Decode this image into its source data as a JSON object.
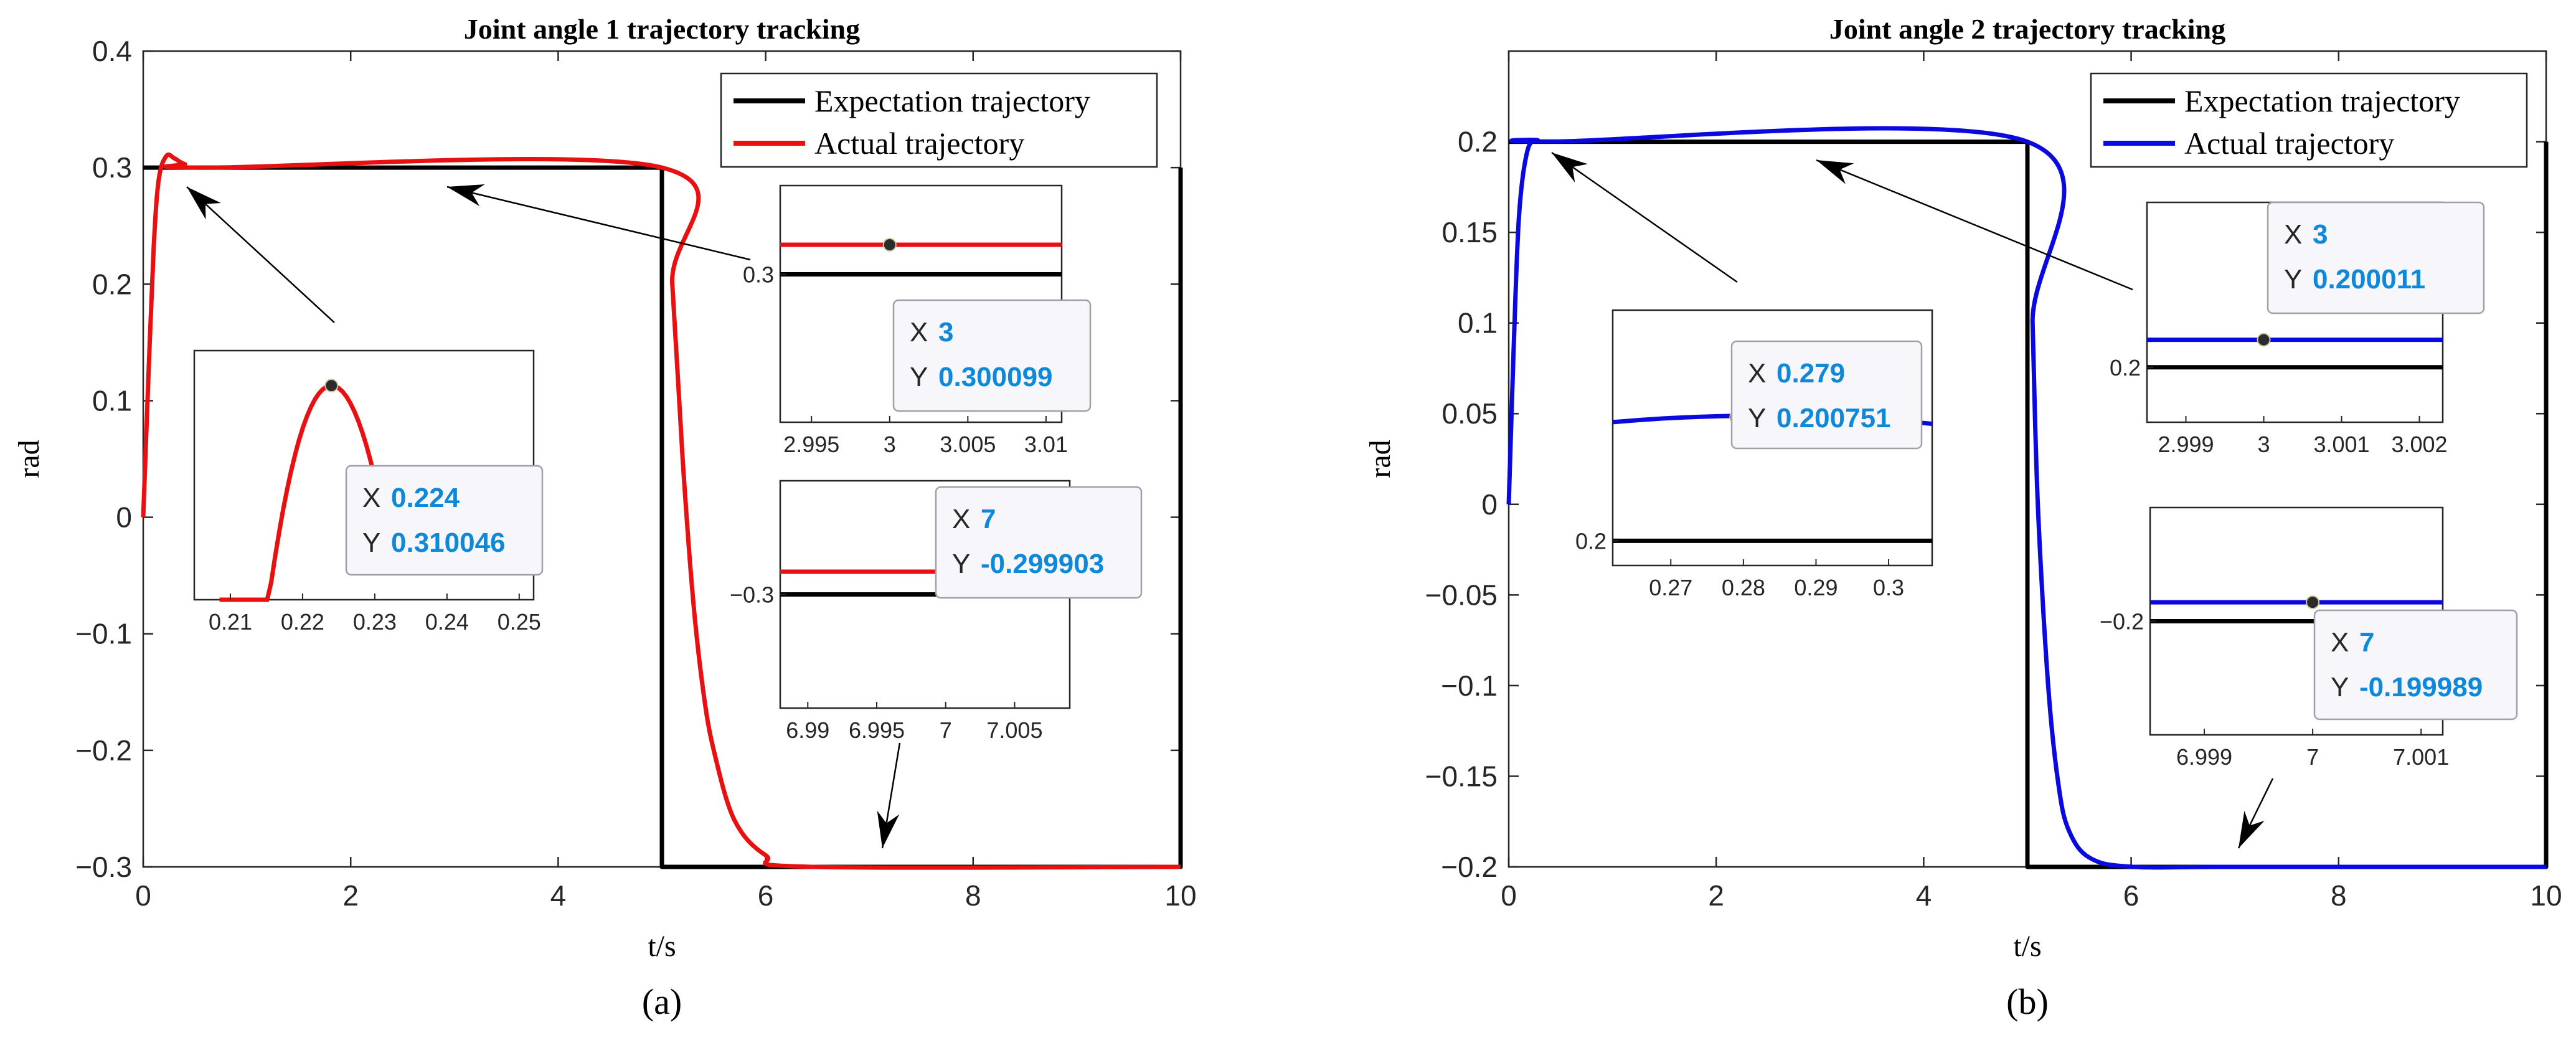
{
  "chart_data": [
    {
      "type": "line",
      "panel_label": "(a)",
      "title": "Joint angle 1 trajectory tracking",
      "xlabel": "t/s",
      "ylabel": "rad",
      "xlim": [
        0,
        10
      ],
      "ylim": [
        -0.3,
        0.4
      ],
      "xticks": [
        "0",
        "2",
        "4",
        "6",
        "8",
        "10"
      ],
      "yticks": [
        "-0.3",
        "-0.2",
        "-0.1",
        "0",
        "0.1",
        "0.2",
        "0.3",
        "0.4"
      ],
      "legend_position": "top-right",
      "series": [
        {
          "name": "Expectation trajectory",
          "color": "#000000",
          "points": [
            [
              0,
              0.3
            ],
            [
              5,
              0.3
            ],
            [
              5,
              -0.3
            ],
            [
              10,
              -0.3
            ],
            [
              10,
              0.3
            ]
          ]
        },
        {
          "name": "Actual trajectory",
          "color": "#e81010",
          "points": [
            [
              0,
              0
            ],
            [
              0.05,
              0.12
            ],
            [
              0.1,
              0.23
            ],
            [
              0.15,
              0.29
            ],
            [
              0.224,
              0.310046
            ],
            [
              0.3,
              0.308
            ],
            [
              0.4,
              0.303
            ],
            [
              0.6,
              0.3
            ],
            [
              5,
              0.3
            ],
            [
              5.1,
              0.2
            ],
            [
              5.2,
              0.05
            ],
            [
              5.3,
              -0.07
            ],
            [
              5.4,
              -0.15
            ],
            [
              5.5,
              -0.2
            ],
            [
              5.7,
              -0.26
            ],
            [
              6.0,
              -0.29
            ],
            [
              6.4,
              -0.299903
            ],
            [
              10,
              -0.3
            ]
          ]
        }
      ],
      "insets": [
        {
          "name": "peak",
          "xticks": [
            "0.21",
            "0.22",
            "0.23",
            "0.24",
            "0.25"
          ],
          "yticks": [],
          "datatip": {
            "x_label": "X",
            "x": "0.224",
            "y_label": "Y",
            "y": "0.310046"
          }
        },
        {
          "name": "steady-high",
          "xticks": [
            "2.995",
            "3",
            "3.005",
            "3.01"
          ],
          "yticks": [
            "0.3"
          ],
          "datatip": {
            "x_label": "X",
            "x": "3",
            "y_label": "Y",
            "y": "0.300099"
          }
        },
        {
          "name": "steady-low",
          "xticks": [
            "6.99",
            "6.995",
            "7",
            "7.005"
          ],
          "yticks": [
            "-0.3"
          ],
          "datatip": {
            "x_label": "X",
            "x": "7",
            "y_label": "Y",
            "y": "-0.299903"
          }
        }
      ]
    },
    {
      "type": "line",
      "panel_label": "(b)",
      "title": "Joint angle 2 trajectory tracking",
      "xlabel": "t/s",
      "ylabel": "rad",
      "xlim": [
        0,
        10
      ],
      "ylim": [
        -0.2,
        0.25
      ],
      "xticks": [
        "0",
        "2",
        "4",
        "6",
        "8",
        "10"
      ],
      "yticks": [
        "-0.2",
        "-0.15",
        "-0.1",
        "-0.05",
        "0",
        "0.05",
        "0.1",
        "0.15",
        "0.2"
      ],
      "legend_position": "top-right",
      "series": [
        {
          "name": "Expectation trajectory",
          "color": "#000000",
          "points": [
            [
              0,
              0.2
            ],
            [
              5,
              0.2
            ],
            [
              5,
              -0.2
            ],
            [
              10,
              -0.2
            ],
            [
              10,
              0.2
            ]
          ]
        },
        {
          "name": "Actual trajectory",
          "color": "#0a0ae0",
          "points": [
            [
              0,
              0
            ],
            [
              0.05,
              0.09
            ],
            [
              0.1,
              0.16
            ],
            [
              0.18,
              0.195
            ],
            [
              0.279,
              0.200751
            ],
            [
              0.4,
              0.2001
            ],
            [
              5,
              0.2
            ],
            [
              5.05,
              0.1
            ],
            [
              5.1,
              0.0
            ],
            [
              5.2,
              -0.1
            ],
            [
              5.3,
              -0.155
            ],
            [
              5.4,
              -0.18
            ],
            [
              5.6,
              -0.195
            ],
            [
              6.0,
              -0.1999
            ],
            [
              7,
              -0.199989
            ],
            [
              10,
              -0.2
            ]
          ]
        }
      ],
      "insets": [
        {
          "name": "peak",
          "xticks": [
            "0.27",
            "0.28",
            "0.29",
            "0.3"
          ],
          "yticks": [
            "0.2"
          ],
          "datatip": {
            "x_label": "X",
            "x": "0.279",
            "y_label": "Y",
            "y": "0.200751"
          }
        },
        {
          "name": "steady-high",
          "xticks": [
            "2.999",
            "3",
            "3.001",
            "3.002"
          ],
          "yticks": [
            "0.2"
          ],
          "datatip": {
            "x_label": "X",
            "x": "3",
            "y_label": "Y",
            "y": "0.200011"
          }
        },
        {
          "name": "steady-low",
          "xticks": [
            "6.999",
            "7",
            "7.001"
          ],
          "yticks": [
            "-0.2"
          ],
          "datatip": {
            "x_label": "X",
            "x": "7",
            "y_label": "Y",
            "y": "-0.199989"
          }
        }
      ]
    }
  ]
}
